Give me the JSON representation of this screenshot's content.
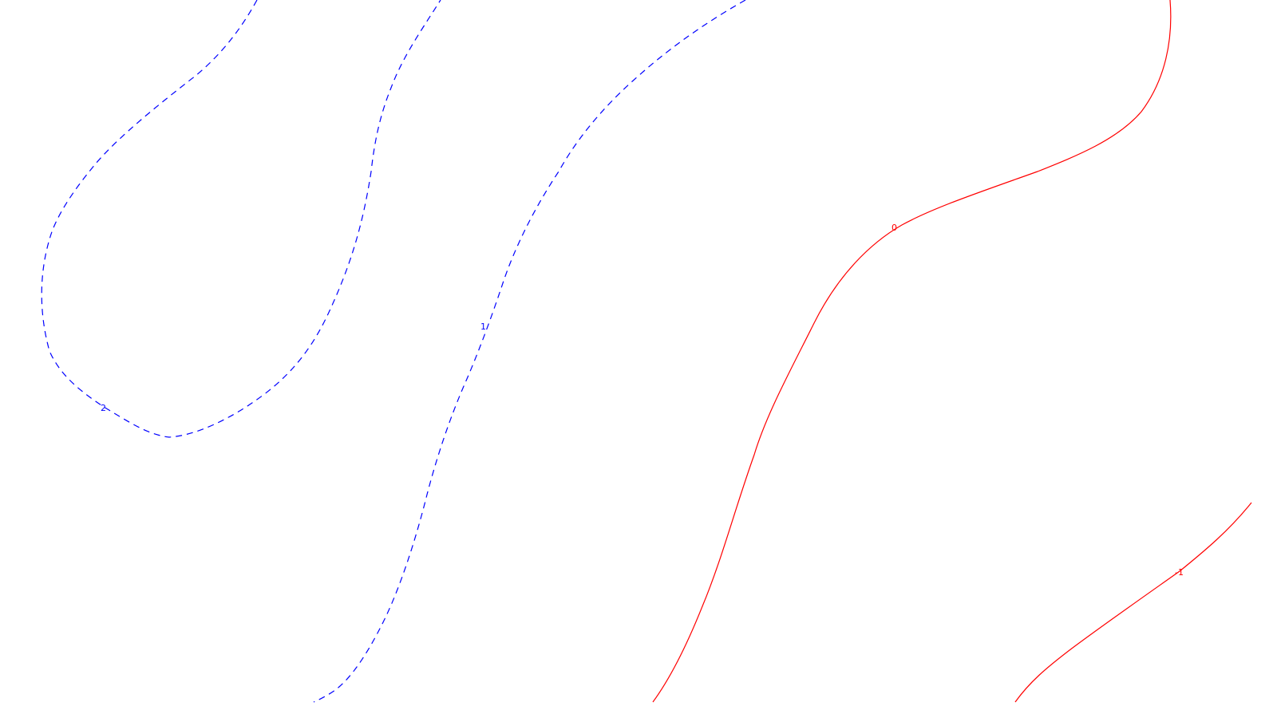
{
  "contours": [
    {
      "level": "2",
      "style": "dashed",
      "color": "#0000ff"
    },
    {
      "level": "1",
      "style": "dashed",
      "color": "#0000ff"
    },
    {
      "level": "0",
      "style": "solid",
      "color": "#ff0000"
    },
    {
      "level": "-1",
      "style": "solid",
      "color": "#ff0000"
    }
  ]
}
